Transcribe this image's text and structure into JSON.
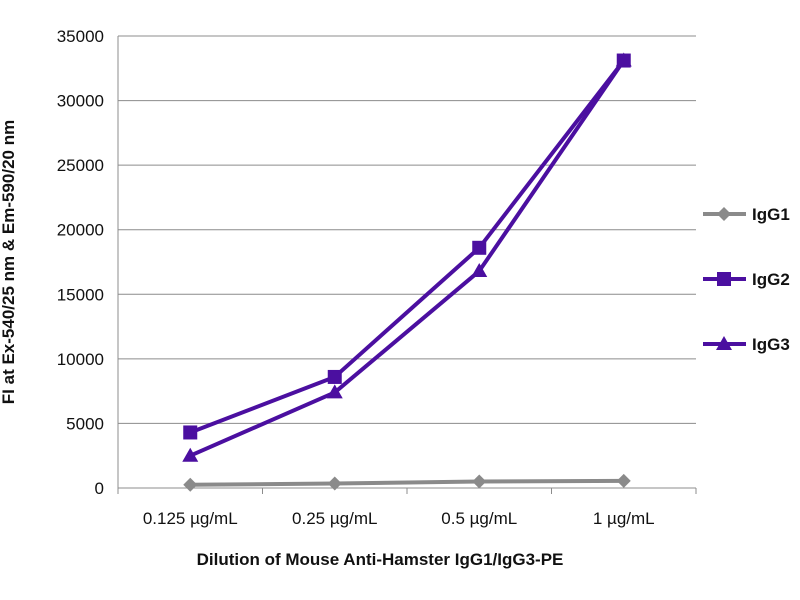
{
  "chart_data": {
    "type": "line",
    "title": "",
    "xlabel": "Dilution of Mouse Anti-Hamster IgG1/IgG3-PE",
    "ylabel": "FI at Ex-540/25 nm & Em-590/20 nm",
    "categories": [
      "0.125 µg/mL",
      "0.25 µg/mL",
      "0.5 µg/mL",
      "1 µg/mL"
    ],
    "ylim": [
      0,
      35000
    ],
    "yticks": [
      "0",
      "5000",
      "10000",
      "15000",
      "20000",
      "25000",
      "30000",
      "35000"
    ],
    "grid": true,
    "legend_position": "right",
    "series": [
      {
        "name": "IgG1",
        "marker": "diamond",
        "color": "#8a8a8a",
        "values": [
          250,
          350,
          500,
          550
        ]
      },
      {
        "name": "IgG2",
        "marker": "square",
        "color": "#4b0fa0",
        "values": [
          4300,
          8600,
          18600,
          33100
        ]
      },
      {
        "name": "IgG3",
        "marker": "triangle",
        "color": "#4b0fa0",
        "values": [
          2500,
          7400,
          16800,
          33100
        ]
      }
    ]
  }
}
